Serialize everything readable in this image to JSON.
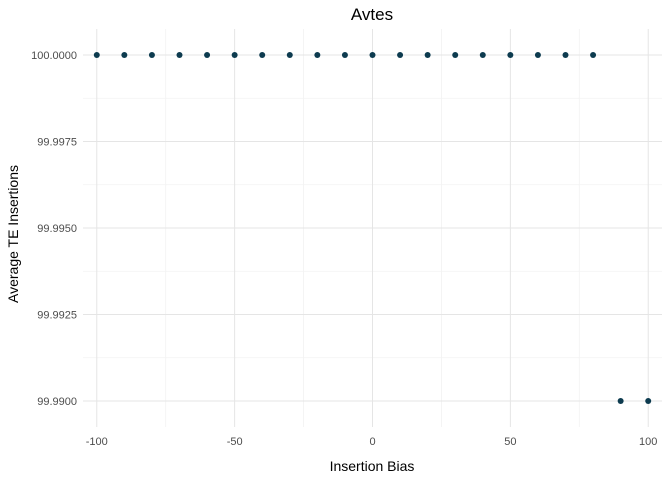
{
  "chart_data": {
    "type": "scatter",
    "title": "Avtes",
    "xlabel": "Insertion Bias",
    "ylabel": "Average TE Insertions",
    "xlim": [
      -105,
      105
    ],
    "ylim": [
      99.98925,
      100.00075
    ],
    "x_ticks": [
      -100,
      -50,
      0,
      50,
      100
    ],
    "x_tick_labels": [
      "-100",
      "-50",
      "0",
      "50",
      "100"
    ],
    "y_ticks": [
      99.99,
      99.9925,
      99.995,
      99.9975,
      100.0
    ],
    "y_tick_labels": [
      "99.9900",
      "99.9925",
      "99.9950",
      "99.9975",
      "100.0000"
    ],
    "grid": true,
    "legend": "none",
    "point_color": "#0d3b4f",
    "series": [
      {
        "x": [
          -100,
          -90,
          -80,
          -70,
          -60,
          -50,
          -40,
          -30,
          -20,
          -10,
          0,
          10,
          20,
          30,
          40,
          50,
          60,
          70,
          80,
          90,
          100
        ],
        "y": [
          100.0,
          100.0,
          100.0,
          100.0,
          100.0,
          100.0,
          100.0,
          100.0,
          100.0,
          100.0,
          100.0,
          100.0,
          100.0,
          100.0,
          100.0,
          100.0,
          100.0,
          100.0,
          100.0,
          99.99,
          99.99
        ]
      }
    ]
  }
}
